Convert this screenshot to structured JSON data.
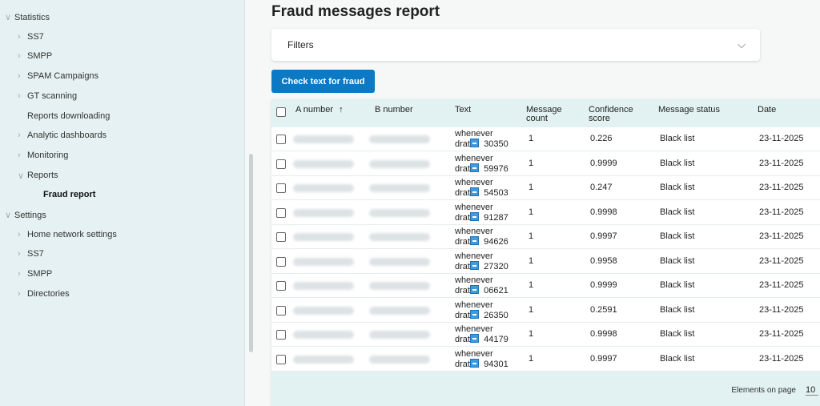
{
  "sidebar": {
    "items": [
      {
        "label": "Statistics",
        "chev": "∨",
        "level": 0
      },
      {
        "label": "SS7",
        "chev": "›",
        "level": 1
      },
      {
        "label": "SMPP",
        "chev": "›",
        "level": 1
      },
      {
        "label": "SPAM Campaigns",
        "chev": "›",
        "level": 1
      },
      {
        "label": "GT scanning",
        "chev": "›",
        "level": 1
      },
      {
        "label": "Reports downloading",
        "chev": "",
        "level": 1
      },
      {
        "label": "Analytic dashboards",
        "chev": "›",
        "level": 1
      },
      {
        "label": "Monitoring",
        "chev": "›",
        "level": 1
      },
      {
        "label": "Reports",
        "chev": "∨",
        "level": 1
      },
      {
        "label": "Fraud report",
        "chev": "",
        "level": 2,
        "active": true
      },
      {
        "label": "Settings",
        "chev": "∨",
        "level": 0
      },
      {
        "label": "Home network settings",
        "chev": "›",
        "level": 1
      },
      {
        "label": "SS7",
        "chev": "›",
        "level": 1
      },
      {
        "label": "SMPP",
        "chev": "›",
        "level": 1
      },
      {
        "label": "Directories",
        "chev": "›",
        "level": 1
      }
    ]
  },
  "page": {
    "title": "Fraud messages report",
    "filters_label": "Filters",
    "check_button": "Check text for fraud"
  },
  "table": {
    "headers": {
      "a": "A number",
      "sort_icon": "↑",
      "b": "B number",
      "text": "Text",
      "count": "Message count",
      "confidence": "Confidence score",
      "status": "Message status",
      "date": "Date"
    },
    "rows": [
      {
        "text1": "whenever",
        "text2": "drat",
        "code": "30350",
        "count": "1",
        "confidence": "0.226",
        "status": "Black list",
        "date": "23-11-2025"
      },
      {
        "text1": "whenever",
        "text2": "drat",
        "code": "59976",
        "count": "1",
        "confidence": "0.9999",
        "status": "Black list",
        "date": "23-11-2025"
      },
      {
        "text1": "whenever",
        "text2": "drat",
        "code": "54503",
        "count": "1",
        "confidence": "0.247",
        "status": "Black list",
        "date": "23-11-2025"
      },
      {
        "text1": "whenever",
        "text2": "drat",
        "code": "91287",
        "count": "1",
        "confidence": "0.9998",
        "status": "Black list",
        "date": "23-11-2025"
      },
      {
        "text1": "whenever",
        "text2": "drat",
        "code": "94626",
        "count": "1",
        "confidence": "0.9997",
        "status": "Black list",
        "date": "23-11-2025"
      },
      {
        "text1": "whenever",
        "text2": "drat",
        "code": "27320",
        "count": "1",
        "confidence": "0.9958",
        "status": "Black list",
        "date": "23-11-2025"
      },
      {
        "text1": "whenever",
        "text2": "drat",
        "code": "06621",
        "count": "1",
        "confidence": "0.9999",
        "status": "Black list",
        "date": "23-11-2025"
      },
      {
        "text1": "whenever",
        "text2": "drat",
        "code": "26350",
        "count": "1",
        "confidence": "0.2591",
        "status": "Black list",
        "date": "23-11-2025"
      },
      {
        "text1": "whenever",
        "text2": "drat",
        "code": "44179",
        "count": "1",
        "confidence": "0.9998",
        "status": "Black list",
        "date": "23-11-2025"
      },
      {
        "text1": "whenever",
        "text2": "drat",
        "code": "94301",
        "count": "1",
        "confidence": "0.9997",
        "status": "Black list",
        "date": "23-11-2025"
      }
    ]
  },
  "footer": {
    "elements_label": "Elements on page",
    "elements_value": "10"
  },
  "colors": {
    "accent": "#0b79c3",
    "sidebar_bg": "#e5f1f2",
    "header_bg": "#e2f1f1"
  }
}
